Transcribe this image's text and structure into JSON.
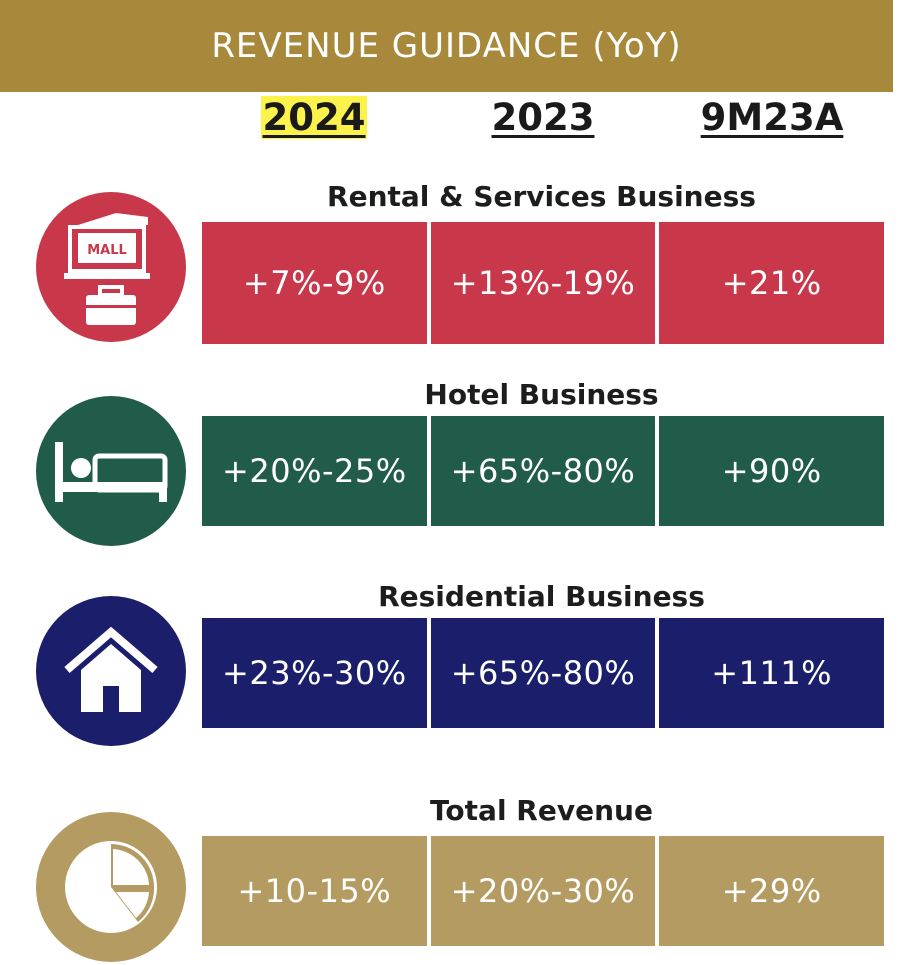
{
  "header": {
    "title": "REVENUE GUIDANCE (YoY)"
  },
  "columns": [
    "2024",
    "2023",
    "9M23A"
  ],
  "colors": {
    "banner": "#a8893c",
    "rental": "#c8384a",
    "hotel": "#215c4a",
    "residential": "#1b1f6b",
    "total": "#b39b62",
    "highlight": "#fbf34c"
  },
  "sections": [
    {
      "title": "Rental & Services Business",
      "icon": "mall-briefcase-icon",
      "values": [
        "+7%-9%",
        "+13%-19%",
        "+21%"
      ]
    },
    {
      "title": "Hotel Business",
      "icon": "bed-icon",
      "values": [
        "+20%-25%",
        "+65%-80%",
        "+90%"
      ]
    },
    {
      "title": "Residential Business",
      "icon": "house-icon",
      "values": [
        "+23%-30%",
        "+65%-80%",
        "+111%"
      ]
    },
    {
      "title": "Total Revenue",
      "icon": "pie-chart-icon",
      "values": [
        "+10-15%",
        "+20%-30%",
        "+29%"
      ]
    }
  ],
  "icon_text": {
    "mall": "MALL"
  }
}
